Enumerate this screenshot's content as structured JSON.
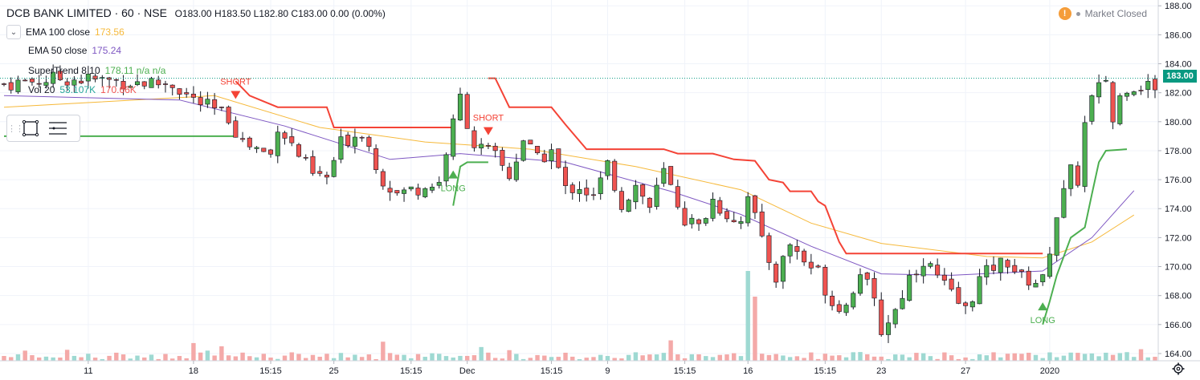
{
  "header": {
    "symbol": "DCB BANK LIMITED · 60 · NSE",
    "open_label": "O",
    "open": "183.00",
    "high_label": "H",
    "high": "183.50",
    "low_label": "L",
    "low": "182.80",
    "close_label": "C",
    "close": "183.00",
    "change": "0.00 (0.00%)"
  },
  "market_status": "Market Closed",
  "indicators": [
    {
      "label": "EMA 100 close",
      "value": "173.56",
      "color": "#f6b93b"
    },
    {
      "label": "EMA 50 close",
      "value": "175.24",
      "color": "#7e57c2"
    },
    {
      "label": "SuperTrend 8 10",
      "value": "178.11  n/a  n/a",
      "color": "#4caf50"
    },
    {
      "label": "Vol 20",
      "value": "53.107K",
      "value2": "170.66K",
      "color": "#26a69a",
      "color2": "#ef5350"
    }
  ],
  "toolbox": {
    "icons": [
      "drag-grip-icon",
      "rectangle-select-icon",
      "list-lines-icon"
    ]
  },
  "last_price_label": "183.00",
  "colors": {
    "up": "#26a69a",
    "down": "#ef5350",
    "up_body": "#4caf50",
    "supertrend_up": "#4caf50",
    "supertrend_down": "#f44336",
    "ema100": "#f6b93b",
    "ema50": "#7e57c2",
    "grid": "#f0f3fa",
    "axis_text": "#131722"
  },
  "chart_data": {
    "type": "candlestick",
    "y_axis": {
      "range": [
        163.5,
        188.4
      ],
      "ticks": [
        "188.00",
        "186.00",
        "184.00",
        "182.00",
        "180.00",
        "178.00",
        "176.00",
        "174.00",
        "172.00",
        "170.00",
        "168.00",
        "166.00",
        "164.00"
      ]
    },
    "x_axis": {
      "bars": 165,
      "ticks": [
        {
          "label": "11",
          "bar": 12
        },
        {
          "label": "18",
          "bar": 27
        },
        {
          "label": "15:15",
          "bar": 38
        },
        {
          "label": "25",
          "bar": 47
        },
        {
          "label": "15:15",
          "bar": 58
        },
        {
          "label": "Dec",
          "bar": 66
        },
        {
          "label": "15:15",
          "bar": 78
        },
        {
          "label": "9",
          "bar": 86
        },
        {
          "label": "15:15",
          "bar": 97
        },
        {
          "label": "16",
          "bar": 106
        },
        {
          "label": "15:15",
          "bar": 117
        },
        {
          "label": "23",
          "bar": 125
        },
        {
          "label": "27",
          "bar": 137
        },
        {
          "label": "2020",
          "bar": 149
        }
      ]
    },
    "close_path": [
      [
        0,
        182.6
      ],
      [
        8,
        183
      ],
      [
        16,
        182.8
      ],
      [
        24,
        182.6
      ],
      [
        27,
        181.5
      ],
      [
        32,
        180.3
      ],
      [
        34,
        178.6
      ],
      [
        38,
        177.7
      ],
      [
        39,
        179.8
      ],
      [
        44,
        176.3
      ],
      [
        46,
        176.1
      ],
      [
        48,
        178.5
      ],
      [
        51,
        179.4
      ],
      [
        54,
        176
      ],
      [
        56,
        175
      ],
      [
        58,
        175.3
      ],
      [
        62,
        175.8
      ],
      [
        63,
        178
      ],
      [
        64,
        179.8
      ],
      [
        65,
        181.7
      ],
      [
        66,
        180
      ],
      [
        67,
        178.4
      ],
      [
        70,
        177.6
      ],
      [
        72,
        176.2
      ],
      [
        74,
        178.8
      ],
      [
        76,
        177.3
      ],
      [
        78,
        178
      ],
      [
        80,
        175.3
      ],
      [
        82,
        175.6
      ],
      [
        84,
        174.7
      ],
      [
        86,
        177
      ],
      [
        88,
        174.3
      ],
      [
        90,
        175.6
      ],
      [
        92,
        174.1
      ],
      [
        94,
        176.5
      ],
      [
        97,
        173.3
      ],
      [
        99,
        172.7
      ],
      [
        101,
        174.6
      ],
      [
        103,
        173.6
      ],
      [
        105,
        173.2
      ],
      [
        106,
        175.2
      ],
      [
        108,
        171.6
      ],
      [
        110,
        169.3
      ],
      [
        112,
        171.6
      ],
      [
        114,
        170.4
      ],
      [
        116,
        169.6
      ],
      [
        118,
        167.5
      ],
      [
        120,
        167.3
      ],
      [
        122,
        169.8
      ],
      [
        124,
        167.4
      ],
      [
        125,
        165.6
      ],
      [
        127,
        167
      ],
      [
        129,
        169.3
      ],
      [
        131,
        170.5
      ],
      [
        133,
        169.3
      ],
      [
        135,
        168
      ],
      [
        137,
        167
      ],
      [
        139,
        169.1
      ],
      [
        141,
        170
      ],
      [
        143,
        170.4
      ],
      [
        145,
        169.2
      ],
      [
        147,
        169
      ],
      [
        148,
        169
      ],
      [
        149,
        171.3
      ],
      [
        150,
        173.6
      ],
      [
        152,
        176.5
      ],
      [
        153,
        176
      ],
      [
        154,
        179.8
      ],
      [
        155,
        181.5
      ],
      [
        157,
        183
      ],
      [
        158,
        180
      ],
      [
        159,
        181.7
      ],
      [
        160,
        182.5
      ]
    ],
    "supertrend": [
      {
        "trend": "up",
        "points": [
          [
            0,
            179
          ],
          [
            27,
            179
          ],
          [
            33,
            179
          ]
        ]
      },
      {
        "trend": "down",
        "points": [
          [
            33,
            182.8
          ],
          [
            35,
            181.8
          ],
          [
            38,
            181.2
          ],
          [
            39,
            181
          ],
          [
            46,
            181
          ],
          [
            47,
            179.6
          ],
          [
            64,
            179.6
          ],
          [
            64,
            179.6
          ]
        ]
      },
      {
        "trend": "up",
        "points": [
          [
            64,
            174.2
          ],
          [
            65,
            176.9
          ],
          [
            66,
            177.2
          ],
          [
            69,
            177.2
          ]
        ]
      },
      {
        "trend": "down",
        "points": [
          [
            69,
            183
          ],
          [
            70,
            183
          ],
          [
            71,
            182
          ],
          [
            72,
            181
          ],
          [
            78,
            181
          ],
          [
            80,
            179.8
          ],
          [
            83,
            178.1
          ],
          [
            94,
            178.1
          ],
          [
            96,
            177.8
          ],
          [
            101,
            177.8
          ],
          [
            104,
            177.4
          ],
          [
            107,
            177.3
          ],
          [
            109,
            176
          ],
          [
            111,
            175.8
          ],
          [
            112,
            175.2
          ],
          [
            115,
            175.2
          ],
          [
            116,
            174.5
          ],
          [
            117,
            174.2
          ],
          [
            119,
            171.7
          ],
          [
            120,
            170.9
          ],
          [
            148,
            170.9
          ]
        ]
      },
      {
        "trend": "up",
        "points": [
          [
            148,
            166
          ],
          [
            149,
            167.6
          ],
          [
            150,
            169.4
          ],
          [
            152,
            172
          ],
          [
            154,
            172.7
          ],
          [
            155,
            175
          ],
          [
            156,
            177.2
          ],
          [
            157,
            178
          ],
          [
            160,
            178.1
          ]
        ]
      }
    ],
    "ema100": [
      [
        0,
        181
      ],
      [
        30,
        181.8
      ],
      [
        45,
        179.6
      ],
      [
        60,
        178.6
      ],
      [
        75,
        178.1
      ],
      [
        90,
        176.9
      ],
      [
        105,
        175.3
      ],
      [
        115,
        173
      ],
      [
        125,
        171.6
      ],
      [
        140,
        170.7
      ],
      [
        148,
        170.6
      ],
      [
        155,
        171.7
      ],
      [
        161,
        173.56
      ]
    ],
    "ema50": [
      [
        0,
        181.8
      ],
      [
        25,
        181.5
      ],
      [
        40,
        179.7
      ],
      [
        55,
        177.4
      ],
      [
        65,
        177.8
      ],
      [
        80,
        177.2
      ],
      [
        95,
        175.2
      ],
      [
        105,
        173.6
      ],
      [
        115,
        171.4
      ],
      [
        125,
        169.5
      ],
      [
        135,
        169.4
      ],
      [
        148,
        169.7
      ],
      [
        155,
        172
      ],
      [
        161,
        175.24
      ]
    ],
    "signals": [
      {
        "label": "SHORT",
        "type": "short",
        "bar": 33,
        "price": 181.9
      },
      {
        "label": "LONG",
        "type": "long",
        "bar": 64,
        "price": 176.3
      },
      {
        "label": "SHORT",
        "type": "short",
        "bar": 69,
        "price": 179.4
      },
      {
        "label": "LONG",
        "type": "long",
        "bar": 148,
        "price": 167.2
      }
    ],
    "last_price": 183.0,
    "volume_scale_max": 20
  }
}
